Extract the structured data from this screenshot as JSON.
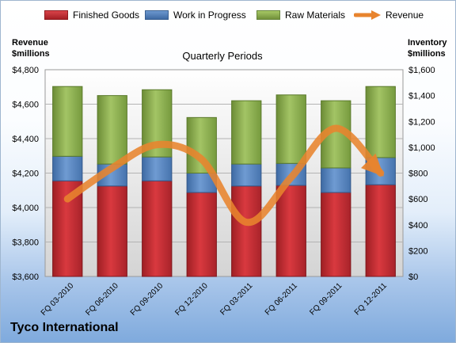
{
  "legend": {
    "items": [
      {
        "label": "Finished Goods",
        "color": "#c0272d"
      },
      {
        "label": "Work in Progress",
        "color": "#4f81bd"
      },
      {
        "label": "Raw Materials",
        "color": "#8eb04a"
      },
      {
        "label": "Revenue",
        "color": "#e8842e"
      }
    ]
  },
  "left_axis_title": [
    "Revenue",
    "$millions"
  ],
  "right_axis_title": [
    "Inventory",
    "$millions"
  ],
  "company": "Tyco International",
  "chart_data": {
    "type": "bar",
    "title": "Quarterly Periods",
    "categories": [
      "FQ 03-2010",
      "FQ 06-2010",
      "FQ 09-2010",
      "FQ 12-2010",
      "FQ 03-2011",
      "FQ 06-2011",
      "FQ 09-2011",
      "FQ 12-2011"
    ],
    "stacked": true,
    "series": [
      {
        "name": "Finished Goods",
        "axis": "right",
        "values": [
          740,
          700,
          740,
          650,
          700,
          705,
          650,
          710
        ],
        "color": "#c0272d"
      },
      {
        "name": "Work in Progress",
        "axis": "right",
        "values": [
          190,
          170,
          185,
          150,
          170,
          170,
          190,
          210
        ],
        "color": "#4f81bd"
      },
      {
        "name": "Raw Materials",
        "axis": "right",
        "values": [
          540,
          530,
          520,
          430,
          490,
          530,
          520,
          550
        ],
        "color": "#8eb04a"
      },
      {
        "name": "Revenue",
        "axis": "left",
        "type": "line",
        "values": [
          4050,
          4230,
          4365,
          4280,
          3915,
          4175,
          4460,
          4200
        ],
        "color": "#e8842e"
      }
    ],
    "y_left": {
      "min": 3600,
      "max": 4800,
      "step": 200,
      "ticks": [
        "$3,600",
        "$3,800",
        "$4,000",
        "$4,200",
        "$4,400",
        "$4,600",
        "$4,800"
      ]
    },
    "y_right": {
      "min": 0,
      "max": 1600,
      "step": 200,
      "ticks": [
        "$0",
        "$200",
        "$400",
        "$600",
        "$800",
        "$1,000",
        "$1,200",
        "$1,400",
        "$1,600"
      ]
    },
    "grid": true,
    "legend_position": "top"
  }
}
